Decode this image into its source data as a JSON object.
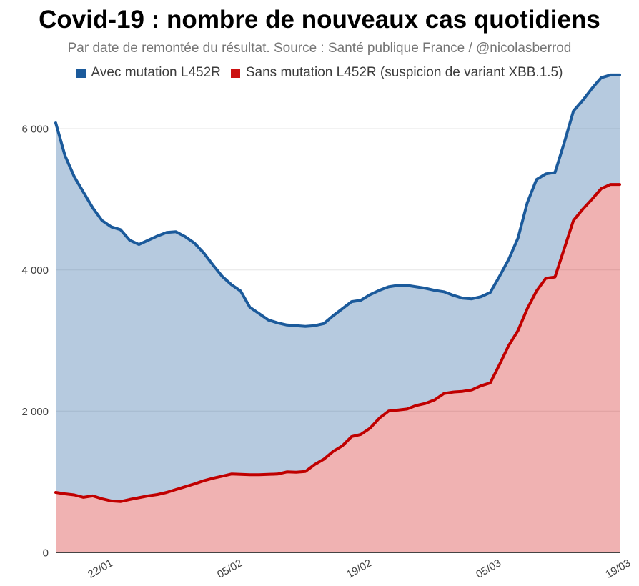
{
  "header": {
    "title": "Covid-19 : nombre de nouveaux cas quotidiens",
    "subtitle": "Par date de remontée du résultat. Source : Santé publique France / @nicolasberrod"
  },
  "legend": {
    "items": [
      {
        "label": "Avec mutation L452R",
        "color": "#1b5a9b"
      },
      {
        "label": "Sans mutation L452R (suspicion de variant XBB.1.5)",
        "color": "#cc1111"
      }
    ]
  },
  "colors": {
    "blue_line": "#1b5a9b",
    "blue_fill": "rgba(27,90,155,0.32)",
    "red_line": "#c00000",
    "red_fill": "rgba(204,0,0,0.30)",
    "gridline": "#e6e6e6",
    "baseline": "#444444",
    "axis_text": "#404040"
  },
  "chart_data": {
    "type": "area",
    "title": "Covid-19 : nombre de nouveaux cas quotidiens",
    "subtitle": "Par date de remontée du résultat. Source : Santé publique France / @nicolasberrod",
    "grid": true,
    "legend_position": "top",
    "ylim": [
      0,
      6800
    ],
    "y_ticks": [
      0,
      2000,
      4000,
      6000
    ],
    "y_tick_labels": [
      "0",
      "2 000",
      "4 000",
      "6 000"
    ],
    "x_tick_indices": [
      5,
      19,
      33,
      47,
      61
    ],
    "x": [
      "17/01",
      "18/01",
      "19/01",
      "20/01",
      "21/01",
      "22/01",
      "23/01",
      "24/01",
      "25/01",
      "26/01",
      "27/01",
      "28/01",
      "29/01",
      "30/01",
      "31/01",
      "01/02",
      "02/02",
      "03/02",
      "04/02",
      "05/02",
      "06/02",
      "07/02",
      "08/02",
      "09/02",
      "10/02",
      "11/02",
      "12/02",
      "13/02",
      "14/02",
      "15/02",
      "16/02",
      "17/02",
      "18/02",
      "19/02",
      "20/02",
      "21/02",
      "22/02",
      "23/02",
      "24/02",
      "25/02",
      "26/02",
      "27/02",
      "28/02",
      "01/03",
      "02/03",
      "03/03",
      "04/03",
      "05/03",
      "06/03",
      "07/03",
      "08/03",
      "09/03",
      "10/03",
      "11/03",
      "12/03",
      "13/03",
      "14/03",
      "15/03",
      "16/03",
      "17/03",
      "18/03",
      "19/03"
    ],
    "series": [
      {
        "name": "Avec mutation L452R",
        "color": "#1b5a9b",
        "fill": "rgba(27,90,155,0.32)",
        "values": [
          6080,
          5620,
          5320,
          5100,
          4880,
          4700,
          4610,
          4570,
          4420,
          4360,
          4420,
          4480,
          4530,
          4540,
          4470,
          4380,
          4240,
          4070,
          3910,
          3790,
          3700,
          3470,
          3380,
          3290,
          3250,
          3220,
          3210,
          3200,
          3210,
          3240,
          3350,
          3450,
          3550,
          3570,
          3650,
          3710,
          3760,
          3780,
          3780,
          3760,
          3740,
          3710,
          3690,
          3640,
          3600,
          3590,
          3620,
          3680,
          3910,
          4150,
          4450,
          4950,
          5280,
          5360,
          5380,
          5800,
          6250,
          6400,
          6570,
          6720,
          6760,
          6760
        ]
      },
      {
        "name": "Sans mutation L452R (suspicion de variant XBB.1.5)",
        "color": "#c00000",
        "fill": "rgba(204,0,0,0.30)",
        "values": [
          850,
          830,
          815,
          780,
          800,
          760,
          730,
          720,
          750,
          775,
          800,
          820,
          850,
          890,
          930,
          970,
          1015,
          1050,
          1080,
          1110,
          1105,
          1100,
          1100,
          1105,
          1110,
          1140,
          1135,
          1145,
          1245,
          1320,
          1430,
          1510,
          1640,
          1670,
          1760,
          1900,
          2000,
          2015,
          2030,
          2080,
          2110,
          2160,
          2250,
          2270,
          2280,
          2300,
          2360,
          2400,
          2660,
          2930,
          3140,
          3450,
          3700,
          3880,
          3900,
          4300,
          4700,
          4860,
          5000,
          5150,
          5210,
          5210
        ]
      }
    ]
  }
}
